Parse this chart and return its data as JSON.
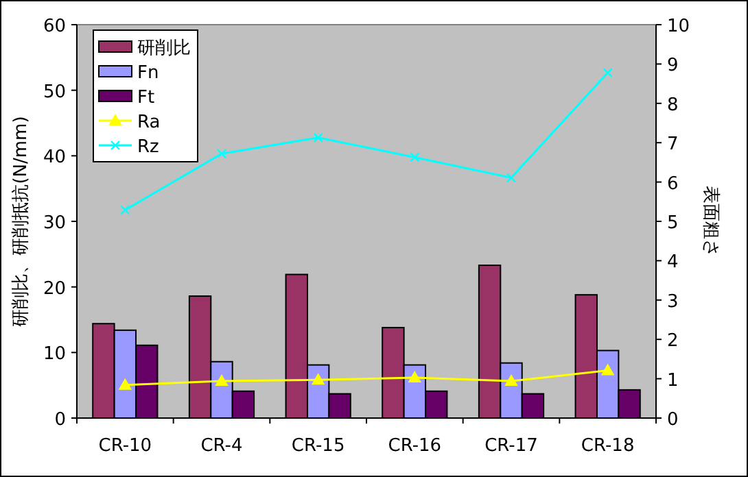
{
  "chart_data": {
    "type": "bar",
    "ylabel": "研削比、研削抵抗(N/mm)",
    "y2label": "表面粗さ",
    "categories": [
      "CR-10",
      "CR-4",
      "CR-15",
      "CR-16",
      "CR-17",
      "CR-18"
    ],
    "series": [
      {
        "name": "研削比",
        "color": "#993366",
        "values": [
          14.4,
          18.6,
          21.9,
          13.8,
          23.3,
          18.8
        ]
      },
      {
        "name": "Fn",
        "color": "#9999ff",
        "values": [
          13.4,
          8.6,
          8.1,
          8.1,
          8.4,
          10.3
        ]
      },
      {
        "name": "Ft",
        "color": "#660066",
        "values": [
          11.1,
          4.1,
          3.7,
          4.1,
          3.7,
          4.3
        ]
      },
      {
        "name": "Ra",
        "type": "line",
        "axis": "y2",
        "marker": "triangle",
        "color": "#ffff00",
        "values": [
          0.84,
          0.94,
          0.97,
          1.03,
          0.94,
          1.21
        ]
      },
      {
        "name": "Rz",
        "type": "line",
        "axis": "y2",
        "marker": "cross",
        "color": "#00ffff",
        "values": [
          5.29,
          6.72,
          7.13,
          6.63,
          6.11,
          8.78
        ]
      }
    ],
    "ylim": [
      0,
      60
    ],
    "yticks": [
      0,
      10,
      20,
      30,
      40,
      50,
      60
    ],
    "y2lim": [
      0,
      10
    ],
    "y2ticks": [
      0,
      1,
      2,
      3,
      4,
      5,
      6,
      7,
      8,
      9,
      10
    ],
    "legend": "top left",
    "grid": false
  }
}
